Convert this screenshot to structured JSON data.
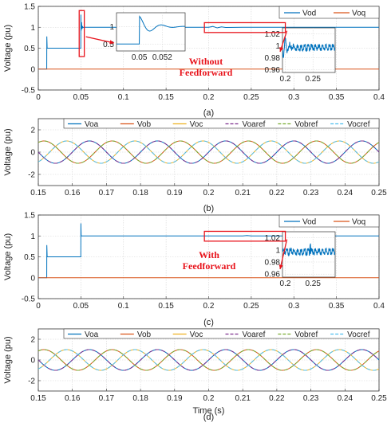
{
  "colors": {
    "Vod": "#0072bd",
    "Voq": "#d95319",
    "Voa": "#0072bd",
    "Vob": "#d95319",
    "Voc": "#edb120",
    "Voaref": "#7e2f8e",
    "Vobref": "#77ac30",
    "Vocref": "#4dbeee",
    "annotation": "#e8141c"
  },
  "chart_data": [
    {
      "panel": "a",
      "type": "line",
      "caption": "(a)",
      "ylabel": "Voltage (pu)",
      "xlabel": "",
      "xlim": [
        0,
        0.4
      ],
      "ylim": [
        -0.5,
        1.5
      ],
      "xticks": [
        "0",
        "0.05",
        "0.1",
        "0.15",
        "0.2",
        "0.25",
        "0.3",
        "0.35",
        "0.4"
      ],
      "yticks": [
        "-0.5",
        "0",
        "0.5",
        "1",
        "1.5"
      ],
      "grid": true,
      "legend_position": "top-right",
      "series": [
        {
          "name": "Vod",
          "x": [
            0,
            0.0099,
            0.01,
            0.0104,
            0.011,
            0.02,
            0.04,
            0.0499,
            0.05,
            0.0503,
            0.0507,
            0.0512,
            0.0517,
            0.0523,
            0.053,
            0.06,
            0.2,
            0.205,
            0.21,
            0.215,
            0.22,
            0.24,
            0.26,
            0.28,
            0.3,
            0.35,
            0.4
          ],
          "y": [
            0,
            0,
            0.78,
            0.5,
            0.5,
            0.5,
            0.5,
            0.5,
            1.3,
            0.92,
            1.12,
            0.96,
            1.03,
            0.99,
            1.0,
            1.0,
            1.0,
            1.02,
            0.985,
            1.01,
            0.995,
            1.0,
            1.0,
            1.0,
            1.0,
            1.0,
            1.0
          ]
        },
        {
          "name": "Voq",
          "x": [
            0,
            0.4
          ],
          "y": [
            0,
            0
          ]
        }
      ],
      "insets": [
        {
          "xlim": [
            0.048,
            0.054
          ],
          "ylim": [
            0.3,
            1.4
          ],
          "xticks": [
            "0.05",
            "0.052"
          ],
          "yticks": [
            "0.5",
            "1"
          ]
        },
        {
          "xlim": [
            0.195,
            0.29
          ],
          "ylim": [
            0.955,
            1.03
          ],
          "xticks": [
            "0.2",
            "0.25"
          ],
          "yticks": [
            "0.96",
            "0.98",
            "1",
            "1.02"
          ]
        }
      ],
      "annotation": [
        "Without",
        "Feedforward"
      ]
    },
    {
      "panel": "b",
      "type": "line",
      "caption": "(b)",
      "ylabel": "Voltage (pu)",
      "xlabel": "",
      "xlim": [
        0.15,
        0.25
      ],
      "ylim": [
        -3,
        3
      ],
      "xticks": [
        "0.15",
        "0.16",
        "0.17",
        "0.18",
        "0.19",
        "0.2",
        "0.21",
        "0.22",
        "0.23",
        "0.24",
        "0.25"
      ],
      "yticks": [
        "-2",
        "0",
        "2"
      ],
      "grid": true,
      "legend_position": "top",
      "amplitude": 1,
      "frequency_hz": 50,
      "series": [
        {
          "name": "Voa",
          "phase_deg": 0
        },
        {
          "name": "Vob",
          "phase_deg": -120
        },
        {
          "name": "Voc",
          "phase_deg": 120
        },
        {
          "name": "Voaref",
          "phase_deg": 0
        },
        {
          "name": "Vobref",
          "phase_deg": -120
        },
        {
          "name": "Vocref",
          "phase_deg": 120
        }
      ]
    },
    {
      "panel": "c",
      "type": "line",
      "caption": "(c)",
      "ylabel": "Voltage (pu)",
      "xlabel": "",
      "xlim": [
        0,
        0.4
      ],
      "ylim": [
        -0.5,
        1.5
      ],
      "xticks": [
        "0",
        "0.05",
        "0.1",
        "0.15",
        "0.2",
        "0.25",
        "0.3",
        "0.35",
        "0.4"
      ],
      "yticks": [
        "-0.5",
        "0",
        "0.5",
        "1",
        "1.5"
      ],
      "grid": true,
      "legend_position": "top-right",
      "series": [
        {
          "name": "Vod",
          "x": [
            0,
            0.0099,
            0.01,
            0.0104,
            0.011,
            0.02,
            0.04,
            0.0499,
            0.05,
            0.0503,
            0.051,
            0.06,
            0.2,
            0.24,
            0.245,
            0.25,
            0.3,
            0.35,
            0.4
          ],
          "y": [
            0,
            0,
            0.78,
            0.5,
            0.5,
            0.5,
            0.5,
            0.5,
            1.3,
            1.0,
            1.0,
            1.0,
            1.0,
            1.0,
            1.01,
            1.0,
            1.0,
            1.0,
            1.0
          ]
        },
        {
          "name": "Voq",
          "x": [
            0,
            0.4
          ],
          "y": [
            0,
            0
          ]
        }
      ],
      "insets": [
        {
          "xlim": [
            0.195,
            0.29
          ],
          "ylim": [
            0.955,
            1.03
          ],
          "xticks": [
            "0.2",
            "0.25"
          ],
          "yticks": [
            "0.96",
            "0.98",
            "1",
            "1.02"
          ]
        }
      ],
      "annotation": [
        "With",
        "Feedforward"
      ]
    },
    {
      "panel": "d",
      "type": "line",
      "caption": "(d)",
      "ylabel": "Voltage (pu)",
      "xlabel": "Time (s)",
      "xlim": [
        0.15,
        0.25
      ],
      "ylim": [
        -3,
        3
      ],
      "xticks": [
        "0.15",
        "0.16",
        "0.17",
        "0.18",
        "0.19",
        "0.2",
        "0.21",
        "0.22",
        "0.23",
        "0.24",
        "0.25"
      ],
      "yticks": [
        "-2",
        "0",
        "2"
      ],
      "grid": true,
      "legend_position": "top",
      "amplitude": 1,
      "frequency_hz": 50,
      "series": [
        {
          "name": "Voa",
          "phase_deg": 0
        },
        {
          "name": "Vob",
          "phase_deg": -120
        },
        {
          "name": "Voc",
          "phase_deg": 120
        },
        {
          "name": "Voaref",
          "phase_deg": 0
        },
        {
          "name": "Vobref",
          "phase_deg": -120
        },
        {
          "name": "Vocref",
          "phase_deg": 120
        }
      ]
    }
  ]
}
